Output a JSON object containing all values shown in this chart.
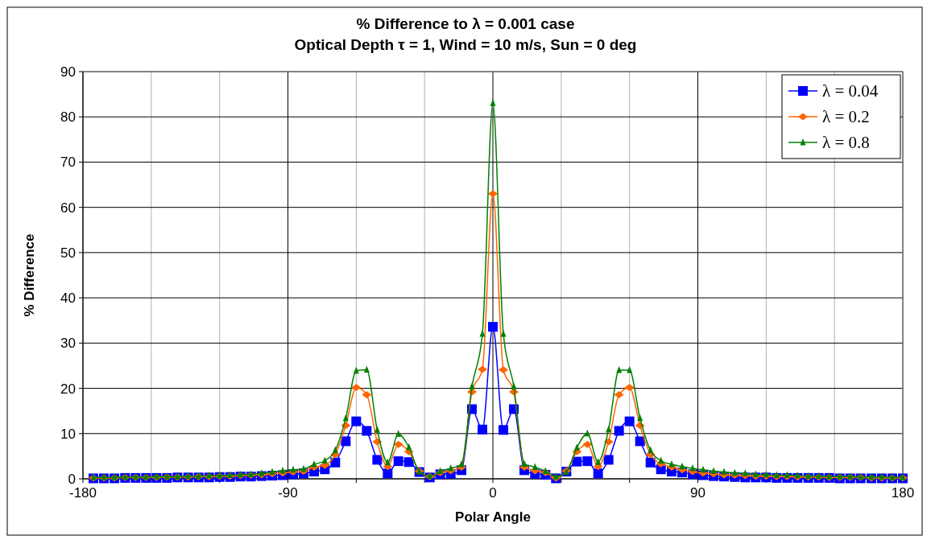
{
  "chart_data": {
    "type": "line",
    "title": "% Difference to λ = 0.001 case",
    "subtitle": "Optical Depth τ = 1, Wind = 10 m/s, Sun = 0 deg",
    "xlabel": "Polar Angle",
    "ylabel": "% Difference",
    "x": [
      -175.4,
      -170.8,
      -166.2,
      -161.5,
      -156.9,
      -152.3,
      -147.7,
      -143.1,
      -138.5,
      -133.8,
      -129.2,
      -124.6,
      -120.0,
      -115.4,
      -110.8,
      -106.2,
      -101.5,
      -96.9,
      -92.3,
      -87.7,
      -83.1,
      -78.5,
      -73.8,
      -69.2,
      -64.6,
      -60.0,
      -55.4,
      -50.8,
      -46.2,
      -41.5,
      -36.9,
      -32.3,
      -27.7,
      -23.1,
      -18.5,
      -13.8,
      -9.2,
      -4.6,
      0,
      4.6,
      9.2,
      13.8,
      18.5,
      23.1,
      27.7,
      32.3,
      36.9,
      41.5,
      46.2,
      50.8,
      55.4,
      60.0,
      64.6,
      69.2,
      73.8,
      78.5,
      83.1,
      87.7,
      92.3,
      96.9,
      101.5,
      106.2,
      110.8,
      115.4,
      120.0,
      124.6,
      129.2,
      133.8,
      138.5,
      143.1,
      147.7,
      152.3,
      156.9,
      161.5,
      166.2,
      170.8,
      175.4,
      180
    ],
    "series": [
      {
        "name": "λ = 0.04",
        "color": "#0000ff",
        "marker": "square",
        "values": [
          0.1,
          0.1,
          0.1,
          0.2,
          0.2,
          0.2,
          0.2,
          0.2,
          0.3,
          0.3,
          0.3,
          0.3,
          0.4,
          0.4,
          0.5,
          0.5,
          0.6,
          0.7,
          0.8,
          1.0,
          1.2,
          1.6,
          2.1,
          3.6,
          8.3,
          12.7,
          10.6,
          4.2,
          1.2,
          3.9,
          3.7,
          1.5,
          0.3,
          1.0,
          1.1,
          1.9,
          15.4,
          10.9,
          33.6,
          10.8,
          15.4,
          1.9,
          1.1,
          0.9,
          0.1,
          1.6,
          3.8,
          3.9,
          1.2,
          4.2,
          10.6,
          12.7,
          8.3,
          3.6,
          2.1,
          1.6,
          1.4,
          1.0,
          0.8,
          0.6,
          0.5,
          0.4,
          0.3,
          0.3,
          0.3,
          0.2,
          0.2,
          0.2,
          0.2,
          0.2,
          0.2,
          0.1,
          0.1,
          0.1,
          0.1,
          0.1,
          0.1,
          0.1
        ]
      },
      {
        "name": "λ = 0.2",
        "color": "#ff6600",
        "marker": "diamond",
        "values": [
          0.2,
          0.2,
          0.2,
          0.3,
          0.3,
          0.3,
          0.3,
          0.4,
          0.4,
          0.4,
          0.5,
          0.5,
          0.6,
          0.6,
          0.7,
          0.8,
          0.9,
          1.1,
          1.3,
          1.5,
          1.7,
          2.6,
          3.0,
          5.4,
          11.8,
          20.2,
          18.6,
          8.2,
          2.7,
          7.6,
          6.0,
          1.7,
          0.5,
          1.4,
          1.8,
          2.6,
          19.2,
          24.2,
          63,
          24.1,
          19.2,
          2.6,
          1.8,
          1.4,
          0.2,
          1.8,
          6.0,
          7.6,
          2.7,
          8.2,
          18.6,
          20.2,
          11.8,
          5.4,
          3.3,
          2.6,
          2.0,
          1.6,
          1.3,
          1.1,
          0.9,
          0.8,
          0.7,
          0.6,
          0.6,
          0.5,
          0.5,
          0.4,
          0.4,
          0.4,
          0.3,
          0.3,
          0.3,
          0.3,
          0.2,
          0.2,
          0.2,
          0.2
        ]
      },
      {
        "name": "λ = 0.8",
        "color": "#008000",
        "marker": "triangle",
        "values": [
          0.3,
          0.3,
          0.3,
          0.4,
          0.4,
          0.4,
          0.5,
          0.5,
          0.5,
          0.6,
          0.6,
          0.7,
          0.7,
          0.8,
          0.9,
          1.0,
          1.2,
          1.5,
          1.8,
          2.0,
          2.2,
          3.2,
          4.0,
          6.3,
          13.4,
          23.9,
          24.1,
          10.8,
          3.6,
          9.9,
          7.0,
          1.6,
          0.6,
          1.7,
          2.3,
          3.2,
          20.4,
          32.0,
          83,
          32.0,
          20.4,
          3.3,
          2.6,
          1.7,
          0.5,
          1.5,
          6.9,
          10.0,
          3.7,
          10.9,
          24.0,
          24.0,
          13.4,
          6.3,
          4.0,
          3.2,
          2.7,
          2.3,
          2.0,
          1.7,
          1.5,
          1.3,
          1.2,
          1.0,
          0.9,
          0.8,
          0.8,
          0.7,
          0.6,
          0.6,
          0.5,
          0.5,
          0.5,
          0.4,
          0.4,
          0.4,
          0.3,
          0.3
        ]
      }
    ],
    "xlim": [
      -180,
      180
    ],
    "xticks": [
      -180,
      {
        "value": -150,
        "label": null
      },
      {
        "value": -120,
        "label": null
      },
      -90,
      {
        "value": -60,
        "label": null
      },
      {
        "value": -30,
        "label": null
      },
      0,
      {
        "value": 30,
        "label": null
      },
      {
        "value": 60,
        "label": null
      },
      90,
      {
        "value": 120,
        "label": null
      },
      {
        "value": 150,
        "label": null
      },
      180
    ],
    "ylim": [
      0,
      90
    ],
    "yticks": [
      0,
      10,
      20,
      30,
      40,
      50,
      60,
      70,
      80,
      90
    ],
    "grid": true,
    "legend": "top right",
    "line_style": "solid"
  }
}
